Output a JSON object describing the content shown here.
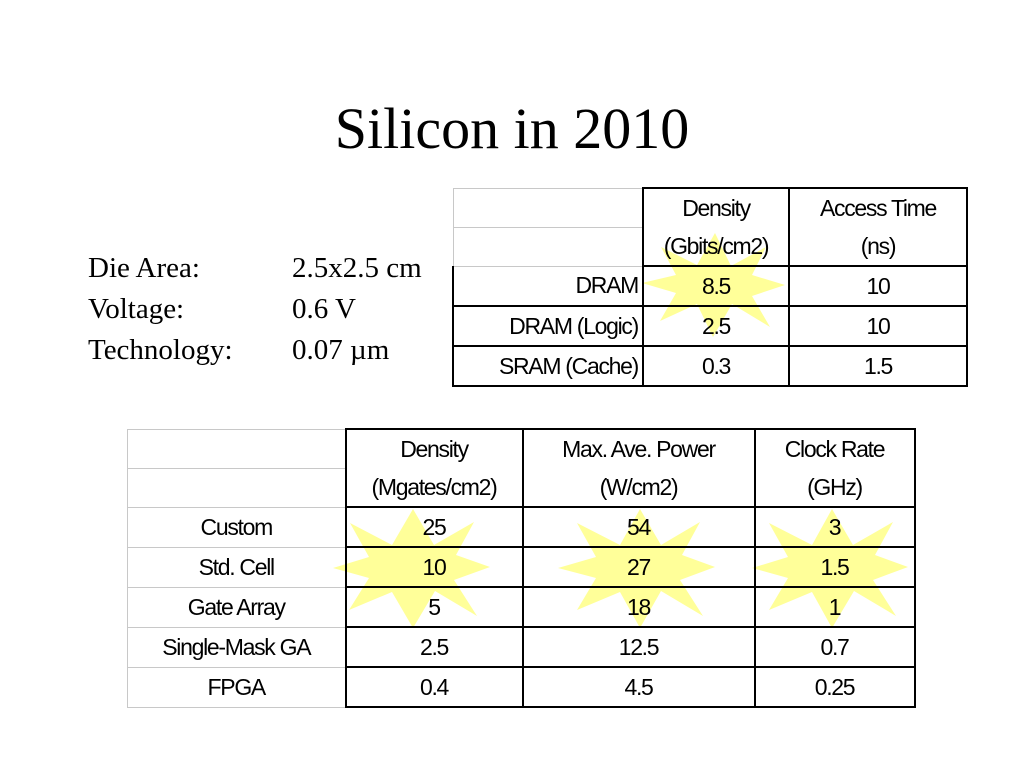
{
  "slide": {
    "title": "Silicon in 2010",
    "specs": [
      {
        "label": "Die Area:",
        "value": "2.5x2.5 cm"
      },
      {
        "label": "Voltage:",
        "value": "0.6 V"
      },
      {
        "label": "Technology:",
        "value": "0.07 µm"
      }
    ]
  },
  "memory_table": {
    "headers": [
      {
        "line1": "Density",
        "line2": "(Gbits/cm2)"
      },
      {
        "line1": "Access Time",
        "line2": "(ns)"
      }
    ],
    "rows": [
      {
        "label": "DRAM",
        "density": "8.5",
        "access_time": "10"
      },
      {
        "label": "DRAM (Logic)",
        "density": "2.5",
        "access_time": "10"
      },
      {
        "label": "SRAM (Cache)",
        "density": "0.3",
        "access_time": "1.5"
      }
    ]
  },
  "logic_table": {
    "headers": [
      {
        "line1": "Density",
        "line2": "(Mgates/cm2)"
      },
      {
        "line1": "Max. Ave. Power",
        "line2": "(W/cm2)"
      },
      {
        "line1": "Clock Rate",
        "line2": "(GHz)"
      }
    ],
    "rows": [
      {
        "label": "Custom",
        "density": "25",
        "power": "54",
        "clock": "3"
      },
      {
        "label": "Std. Cell",
        "density": "10",
        "power": "27",
        "clock": "1.5"
      },
      {
        "label": "Gate Array",
        "density": "5",
        "power": "18",
        "clock": "1"
      },
      {
        "label": "Single-Mask GA",
        "density": "2.5",
        "power": "12.5",
        "clock": "0.7"
      },
      {
        "label": "FPGA",
        "density": "0.4",
        "power": "4.5",
        "clock": "0.25"
      }
    ]
  },
  "highlight_color": "#ffff99"
}
